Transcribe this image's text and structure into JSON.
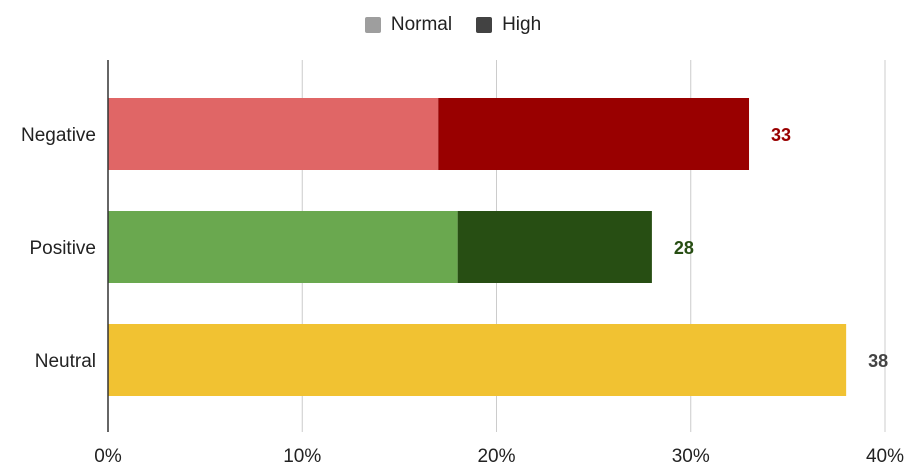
{
  "chart_data": {
    "type": "bar",
    "orientation": "horizontal",
    "stacked": true,
    "categories": [
      "Negative",
      "Positive",
      "Neutral"
    ],
    "series": [
      {
        "name": "Normal",
        "values": [
          17,
          18,
          38
        ]
      },
      {
        "name": "High",
        "values": [
          16,
          10,
          0
        ]
      }
    ],
    "data_labels": [
      "33",
      "28",
      "38"
    ],
    "xlim": [
      0,
      40
    ],
    "xticks": [
      0,
      10,
      20,
      30,
      40
    ],
    "xtick_labels": [
      "0%",
      "10%",
      "20%",
      "30%",
      "40%"
    ],
    "grid": true,
    "legend_position": "top-center",
    "colors": {
      "legend_normal": "#9e9e9e",
      "legend_high": "#424242",
      "Negative": {
        "normal": "#e06666",
        "high": "#990000",
        "label": "#990000"
      },
      "Positive": {
        "normal": "#6aa84f",
        "high": "#274e13",
        "label": "#274e13"
      },
      "Neutral": {
        "normal": "#f1c232",
        "high": "#f1c232",
        "label": "#444444"
      }
    }
  }
}
